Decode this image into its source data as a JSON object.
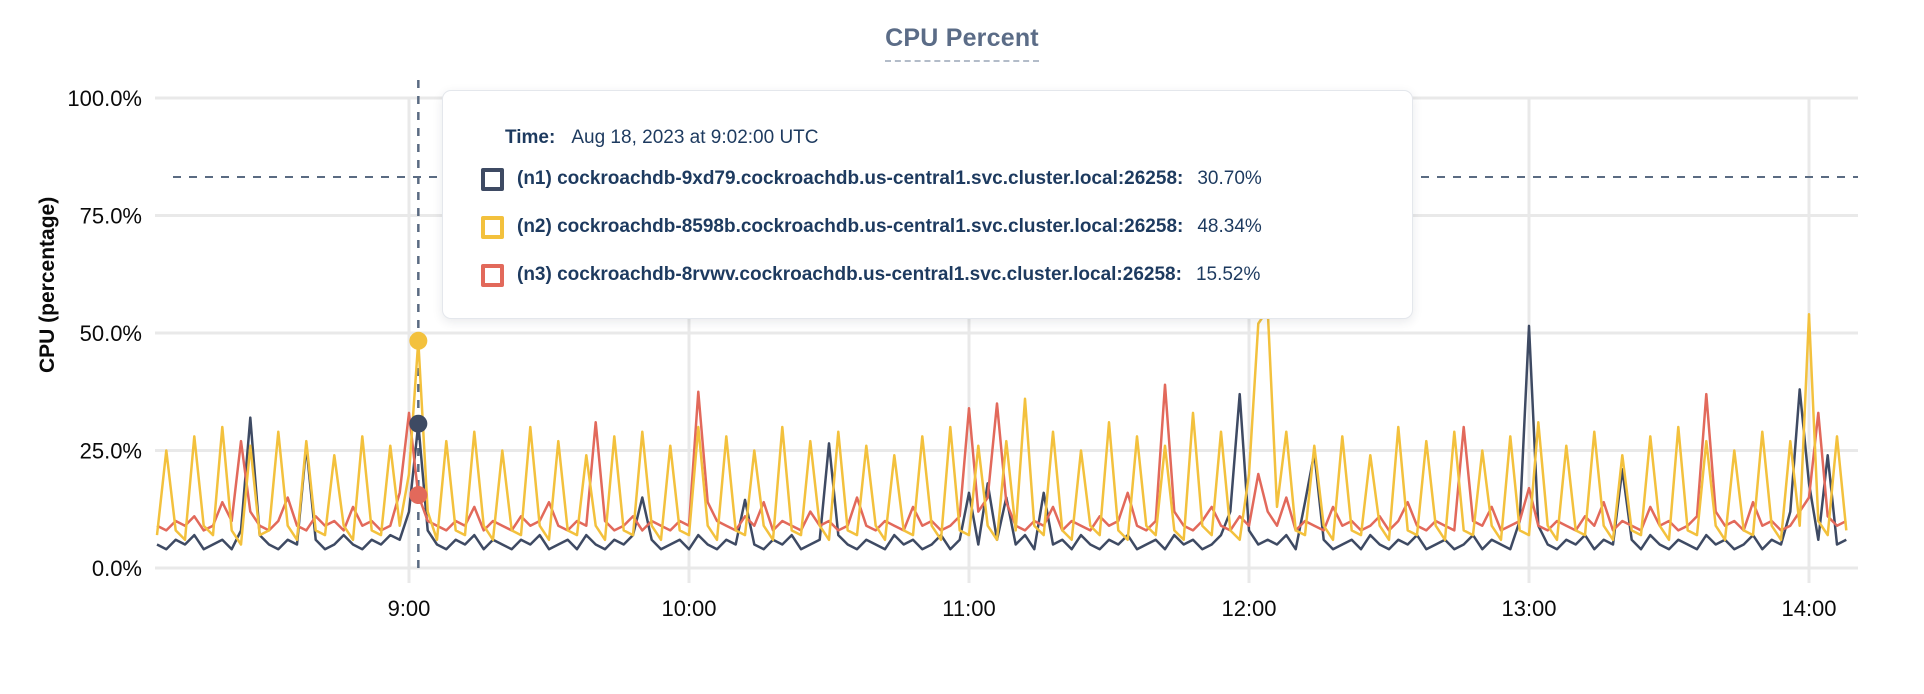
{
  "title": "CPU Percent",
  "colors": {
    "accent_title": "#5b6c87",
    "tooltip_text": "#1d3a5f",
    "grid": "#e9e9e9",
    "crosshair": "#5a6b82",
    "axis_text": "#0a0a0a"
  },
  "tooltip": {
    "time_label": "Time:",
    "time_value": "Aug 18, 2023 at 9:02:00 UTC",
    "entries": [
      {
        "id": "n1",
        "label": "(n1) cockroachdb-9xd79.cockroachdb.us-central1.svc.cluster.local:26258:",
        "value": "30.70%",
        "color": "#3e4a63"
      },
      {
        "id": "n2",
        "label": "(n2) cockroachdb-8598b.cockroachdb.us-central1.svc.cluster.local:26258:",
        "value": "48.34%",
        "color": "#f3c13d"
      },
      {
        "id": "n3",
        "label": "(n3) cockroachdb-8rvwv.cockroachdb.us-central1.svc.cluster.local:26258:",
        "value": "15.52%",
        "color": "#e2695b"
      }
    ]
  },
  "chart_data": {
    "type": "line",
    "title": "CPU Percent",
    "xlabel": "",
    "ylabel": "CPU (percentage)",
    "ylim": [
      0,
      100
    ],
    "grid": true,
    "yticks": [
      {
        "value": 0,
        "label": "0.0%"
      },
      {
        "value": 25,
        "label": "25.0%"
      },
      {
        "value": 50,
        "label": "50.0%"
      },
      {
        "value": 75,
        "label": "75.0%"
      },
      {
        "value": 100,
        "label": "100.0%"
      }
    ],
    "xticks": [
      {
        "min": 540,
        "label": "9:00"
      },
      {
        "min": 600,
        "label": "10:00"
      },
      {
        "min": 660,
        "label": "11:00"
      },
      {
        "min": 720,
        "label": "12:00"
      },
      {
        "min": 780,
        "label": "13:00"
      },
      {
        "min": 840,
        "label": "14:00"
      }
    ],
    "x_start_min": 486,
    "x_step_min": 2,
    "hover": {
      "time_min": 542,
      "time_text": "Aug 18, 2023 at 9:02:00 UTC",
      "y_percent": 83.2,
      "values": {
        "n1": 30.7,
        "n2": 48.34,
        "n3": 15.52
      }
    },
    "series": [
      {
        "id": "n1",
        "name": "(n1) cockroachdb-9xd79.cockroachdb.us-central1.svc.cluster.local:26258",
        "color": "#3e4a63",
        "values": [
          5,
          4,
          6,
          5,
          7,
          4,
          5,
          6,
          4,
          8,
          32,
          7,
          5,
          4,
          6,
          5,
          26,
          6,
          4,
          5,
          7,
          5,
          4,
          6,
          5,
          7,
          6,
          12,
          30.7,
          8,
          5,
          4,
          6,
          5,
          7,
          4,
          6,
          5,
          4,
          6,
          5,
          7,
          4,
          5,
          6,
          4,
          7,
          5,
          4,
          6,
          5,
          7,
          15,
          6,
          4,
          5,
          6,
          4,
          7,
          5,
          4,
          6,
          5,
          14.5,
          5,
          4,
          6,
          5,
          7,
          4,
          5,
          6,
          26.5,
          7,
          5,
          4,
          6,
          5,
          4,
          7,
          5,
          6,
          4,
          5,
          7,
          4,
          6,
          16,
          5,
          18,
          6,
          15,
          5,
          7,
          4,
          16,
          5,
          6,
          4,
          7,
          5,
          4,
          6,
          5,
          7,
          4,
          5,
          6,
          4,
          7,
          5,
          6,
          4,
          5,
          7,
          12,
          37,
          8,
          5,
          6,
          5,
          7,
          4,
          14,
          24.5,
          6,
          4,
          5,
          6,
          4,
          7,
          5,
          4,
          6,
          5,
          7,
          4,
          5,
          6,
          4,
          5,
          7,
          4,
          6,
          5,
          4,
          10,
          51.5,
          9,
          5,
          4,
          6,
          5,
          7,
          4,
          6,
          5,
          21,
          6,
          4,
          7,
          5,
          4,
          6,
          5,
          4,
          7,
          5,
          6,
          4,
          5,
          7,
          4,
          6,
          5,
          12,
          38,
          18,
          6,
          24,
          5,
          6
        ]
      },
      {
        "id": "n3",
        "name": "(n3) cockroachdb-8rvwv.cockroachdb.us-central1.svc.cluster.local:26258",
        "color": "#e2695b",
        "values": [
          9,
          8,
          10,
          9,
          11,
          8,
          9,
          14,
          10,
          27,
          12,
          9,
          8,
          10,
          15,
          9,
          8,
          11,
          9,
          10,
          8,
          13,
          9,
          10,
          8,
          9,
          16,
          33,
          15.52,
          10,
          9,
          8,
          10,
          9,
          13,
          8,
          10,
          9,
          8,
          11,
          9,
          10,
          14,
          9,
          8,
          10,
          9,
          31,
          10,
          8,
          9,
          11,
          8,
          10,
          9,
          8,
          10,
          9,
          37.5,
          14,
          10,
          9,
          8,
          11,
          9,
          14,
          8,
          10,
          9,
          8,
          12,
          9,
          10,
          8,
          9,
          15,
          9,
          8,
          10,
          9,
          8,
          13,
          9,
          10,
          8,
          9,
          11,
          34,
          12,
          15,
          35,
          14,
          9,
          8,
          10,
          9,
          13,
          8,
          10,
          9,
          8,
          11,
          9,
          10,
          16,
          9,
          8,
          10,
          39,
          12,
          9,
          8,
          10,
          13,
          9,
          8,
          11,
          9,
          20,
          12,
          9,
          15,
          8,
          10,
          9,
          8,
          13,
          9,
          10,
          8,
          9,
          11,
          8,
          10,
          14,
          9,
          8,
          10,
          9,
          8,
          30,
          10,
          9,
          13,
          8,
          9,
          10,
          17,
          9,
          8,
          10,
          9,
          8,
          11,
          9,
          14,
          8,
          10,
          9,
          8,
          13,
          9,
          10,
          8,
          9,
          11,
          37,
          12,
          9,
          10,
          8,
          14,
          9,
          10,
          8,
          9,
          12,
          15,
          33,
          11,
          9,
          10
        ]
      },
      {
        "id": "n2",
        "name": "(n2) cockroachdb-8598b.cockroachdb.us-central1.svc.cluster.local:26258",
        "color": "#f3c13d",
        "values": [
          7,
          25,
          8,
          6,
          28,
          9,
          7,
          30,
          8,
          5,
          26,
          7,
          8,
          29,
          9,
          6,
          27,
          8,
          7,
          24,
          9,
          6,
          28,
          8,
          7,
          26,
          9,
          20,
          48.34,
          12,
          6,
          27,
          8,
          7,
          29,
          9,
          6,
          25,
          8,
          7,
          30,
          9,
          6,
          27,
          8,
          7,
          24,
          9,
          6,
          28,
          8,
          7,
          29,
          9,
          6,
          26,
          8,
          7,
          30,
          9,
          6,
          28,
          8,
          7,
          25,
          9,
          6,
          30,
          8,
          7,
          27,
          9,
          6,
          29,
          8,
          7,
          26,
          9,
          6,
          24,
          8,
          7,
          28,
          9,
          6,
          30,
          8,
          7,
          26,
          9,
          6,
          27,
          8,
          36,
          9,
          7,
          29,
          8,
          6,
          25,
          9,
          7,
          31,
          8,
          6,
          28,
          9,
          7,
          26,
          8,
          6,
          33,
          9,
          7,
          29,
          8,
          6,
          20,
          52,
          55,
          13,
          29,
          8,
          7,
          26,
          9,
          6,
          28,
          8,
          7,
          24,
          9,
          6,
          30,
          8,
          7,
          27,
          9,
          6,
          29,
          8,
          7,
          25,
          9,
          6,
          28,
          8,
          7,
          31,
          9,
          6,
          26,
          8,
          7,
          29,
          9,
          6,
          24,
          8,
          7,
          28,
          9,
          6,
          30,
          8,
          7,
          27,
          9,
          6,
          25,
          8,
          7,
          29,
          9,
          6,
          27,
          9,
          54,
          10,
          7,
          28,
          8
        ]
      }
    ]
  }
}
